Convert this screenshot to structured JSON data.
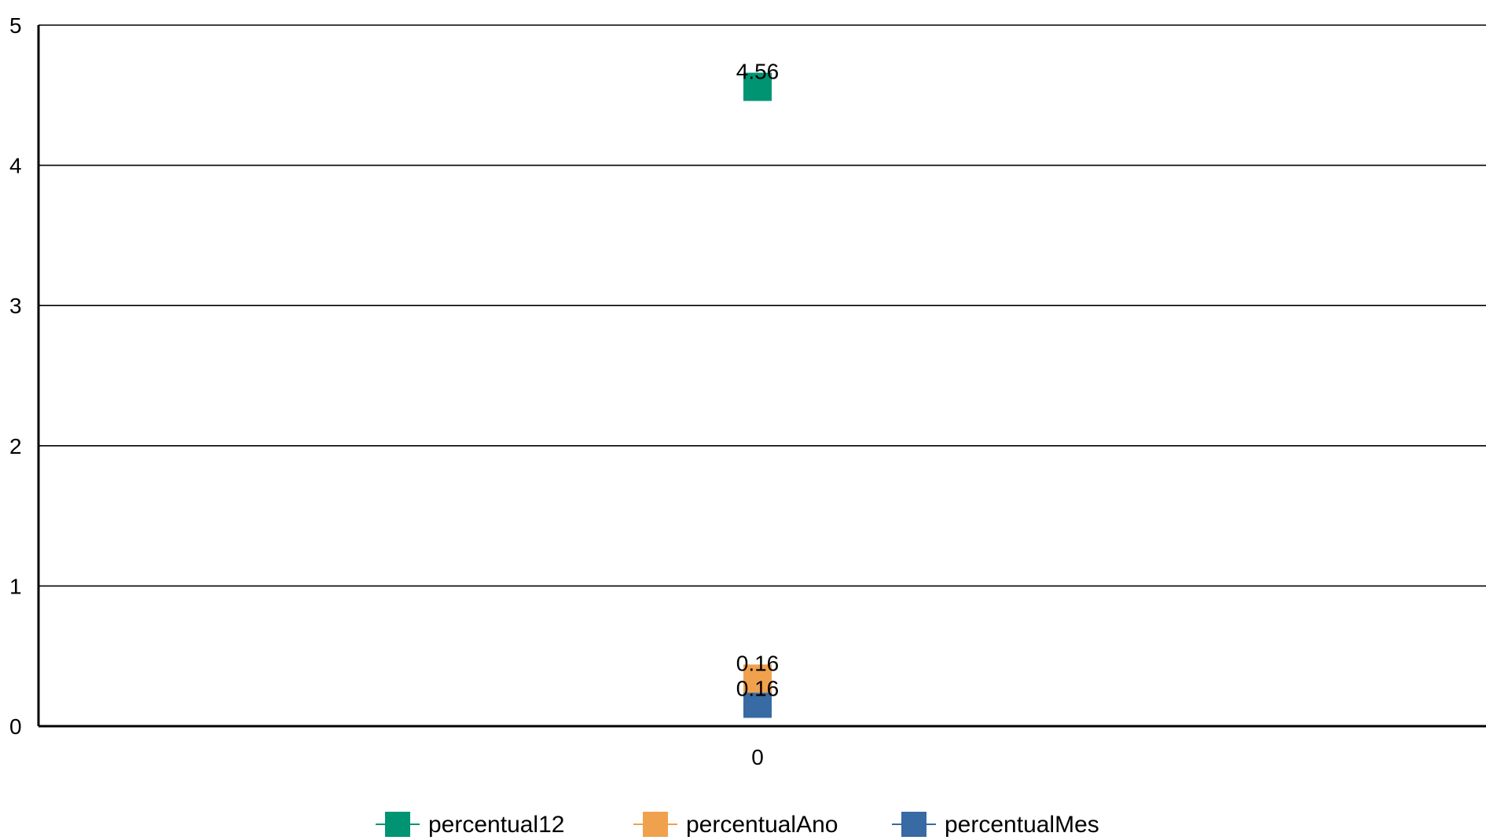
{
  "chart_data": {
    "type": "line",
    "x": [
      "0"
    ],
    "ylim": [
      0,
      5
    ],
    "yticks": [
      "0",
      "1",
      "2",
      "3",
      "4",
      "5"
    ],
    "grid": true,
    "legend_position": "bottom",
    "series": [
      {
        "name": "percentual12",
        "values": [
          4.56
        ],
        "label": "4.56",
        "color": "#009473"
      },
      {
        "name": "percentualAno",
        "values": [
          0.16
        ],
        "label": "0.16",
        "color": "#F0A14D"
      },
      {
        "name": "percentualMes",
        "values": [
          0.16
        ],
        "label": "0.16",
        "color": "#386AA3"
      }
    ]
  }
}
